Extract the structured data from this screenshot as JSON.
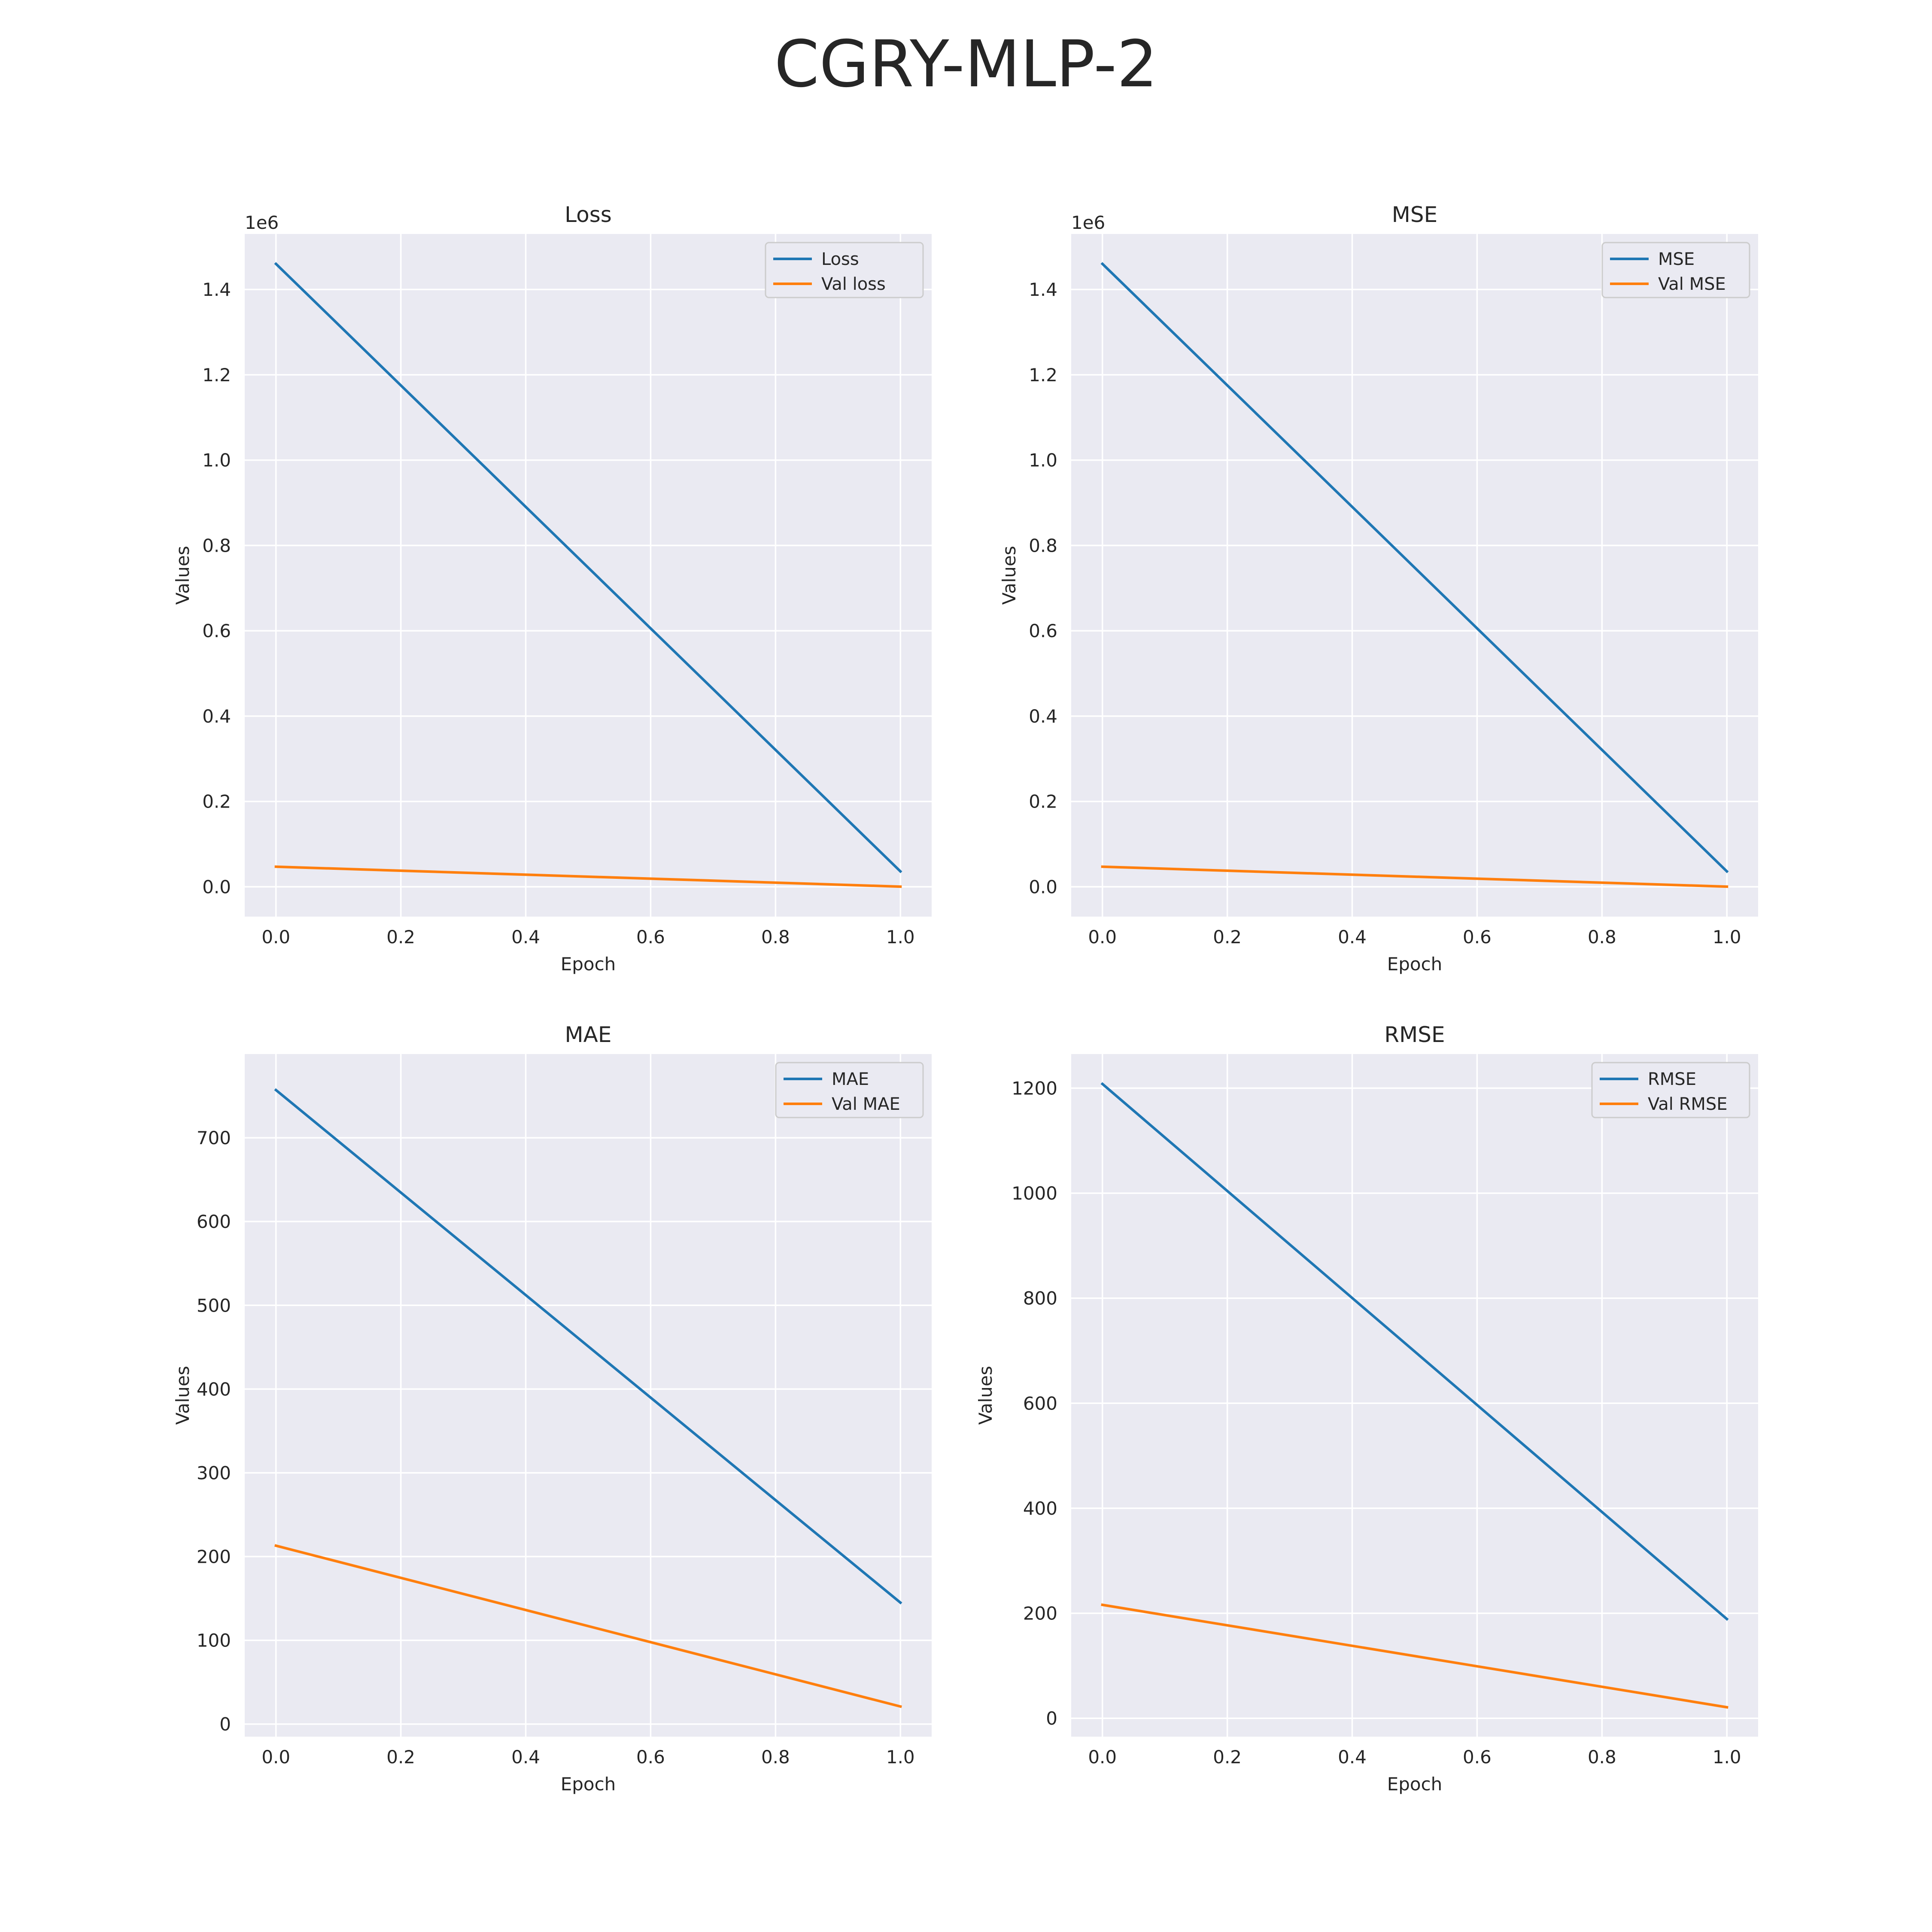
{
  "suptitle": "CGRY-MLP-2",
  "colors": {
    "train": "#1f77b4",
    "val": "#ff7f0e",
    "background": "#eaeaf2",
    "grid": "#ffffff"
  },
  "chart_data": [
    {
      "type": "line",
      "title": "Loss",
      "xlabel": "Epoch",
      "ylabel": "Values",
      "y_offset_label": "1e6",
      "xlim": [
        -0.05,
        1.05
      ],
      "ylim": [
        -0.07,
        1.53
      ],
      "x_ticks": [
        0.0,
        0.2,
        0.4,
        0.6,
        0.8,
        1.0
      ],
      "x_tick_labels": [
        "0.0",
        "0.2",
        "0.4",
        "0.6",
        "0.8",
        "1.0"
      ],
      "y_ticks": [
        0.0,
        0.2,
        0.4,
        0.6,
        0.8,
        1.0,
        1.2,
        1.4
      ],
      "y_tick_labels": [
        "0.0",
        "0.2",
        "0.4",
        "0.6",
        "0.8",
        "1.0",
        "1.2",
        "1.4"
      ],
      "grid": true,
      "legend_position": "top-right",
      "x": [
        0,
        1
      ],
      "series": [
        {
          "name": "Loss",
          "values": [
            1.46,
            0.036
          ]
        },
        {
          "name": "Val loss",
          "values": [
            0.047,
            0.0003
          ]
        }
      ]
    },
    {
      "type": "line",
      "title": "MSE",
      "xlabel": "Epoch",
      "ylabel": "Values",
      "y_offset_label": "1e6",
      "xlim": [
        -0.05,
        1.05
      ],
      "ylim": [
        -0.07,
        1.53
      ],
      "x_ticks": [
        0.0,
        0.2,
        0.4,
        0.6,
        0.8,
        1.0
      ],
      "x_tick_labels": [
        "0.0",
        "0.2",
        "0.4",
        "0.6",
        "0.8",
        "1.0"
      ],
      "y_ticks": [
        0.0,
        0.2,
        0.4,
        0.6,
        0.8,
        1.0,
        1.2,
        1.4
      ],
      "y_tick_labels": [
        "0.0",
        "0.2",
        "0.4",
        "0.6",
        "0.8",
        "1.0",
        "1.2",
        "1.4"
      ],
      "grid": true,
      "legend_position": "top-right",
      "x": [
        0,
        1
      ],
      "series": [
        {
          "name": "MSE",
          "values": [
            1.46,
            0.036
          ]
        },
        {
          "name": "Val MSE",
          "values": [
            0.047,
            0.0003
          ]
        }
      ]
    },
    {
      "type": "line",
      "title": "MAE",
      "xlabel": "Epoch",
      "ylabel": "Values",
      "y_offset_label": "",
      "xlim": [
        -0.05,
        1.05
      ],
      "ylim": [
        -15,
        800
      ],
      "x_ticks": [
        0.0,
        0.2,
        0.4,
        0.6,
        0.8,
        1.0
      ],
      "x_tick_labels": [
        "0.0",
        "0.2",
        "0.4",
        "0.6",
        "0.8",
        "1.0"
      ],
      "y_ticks": [
        0,
        100,
        200,
        300,
        400,
        500,
        600,
        700
      ],
      "y_tick_labels": [
        "0",
        "100",
        "200",
        "300",
        "400",
        "500",
        "600",
        "700"
      ],
      "grid": true,
      "legend_position": "top-right",
      "x": [
        0,
        1
      ],
      "series": [
        {
          "name": "MAE",
          "values": [
            757,
            145
          ]
        },
        {
          "name": "Val MAE",
          "values": [
            213,
            21
          ]
        }
      ]
    },
    {
      "type": "line",
      "title": "RMSE",
      "xlabel": "Epoch",
      "ylabel": "Values",
      "y_offset_label": "",
      "xlim": [
        -0.05,
        1.05
      ],
      "ylim": [
        -35,
        1265
      ],
      "x_ticks": [
        0.0,
        0.2,
        0.4,
        0.6,
        0.8,
        1.0
      ],
      "x_tick_labels": [
        "0.0",
        "0.2",
        "0.4",
        "0.6",
        "0.8",
        "1.0"
      ],
      "y_ticks": [
        0,
        200,
        400,
        600,
        800,
        1000,
        1200
      ],
      "y_tick_labels": [
        "0",
        "200",
        "400",
        "600",
        "800",
        "1000",
        "1200"
      ],
      "grid": true,
      "legend_position": "top-right",
      "x": [
        0,
        1
      ],
      "series": [
        {
          "name": "RMSE",
          "values": [
            1208,
            189
          ]
        },
        {
          "name": "Val RMSE",
          "values": [
            216,
            21
          ]
        }
      ]
    }
  ]
}
